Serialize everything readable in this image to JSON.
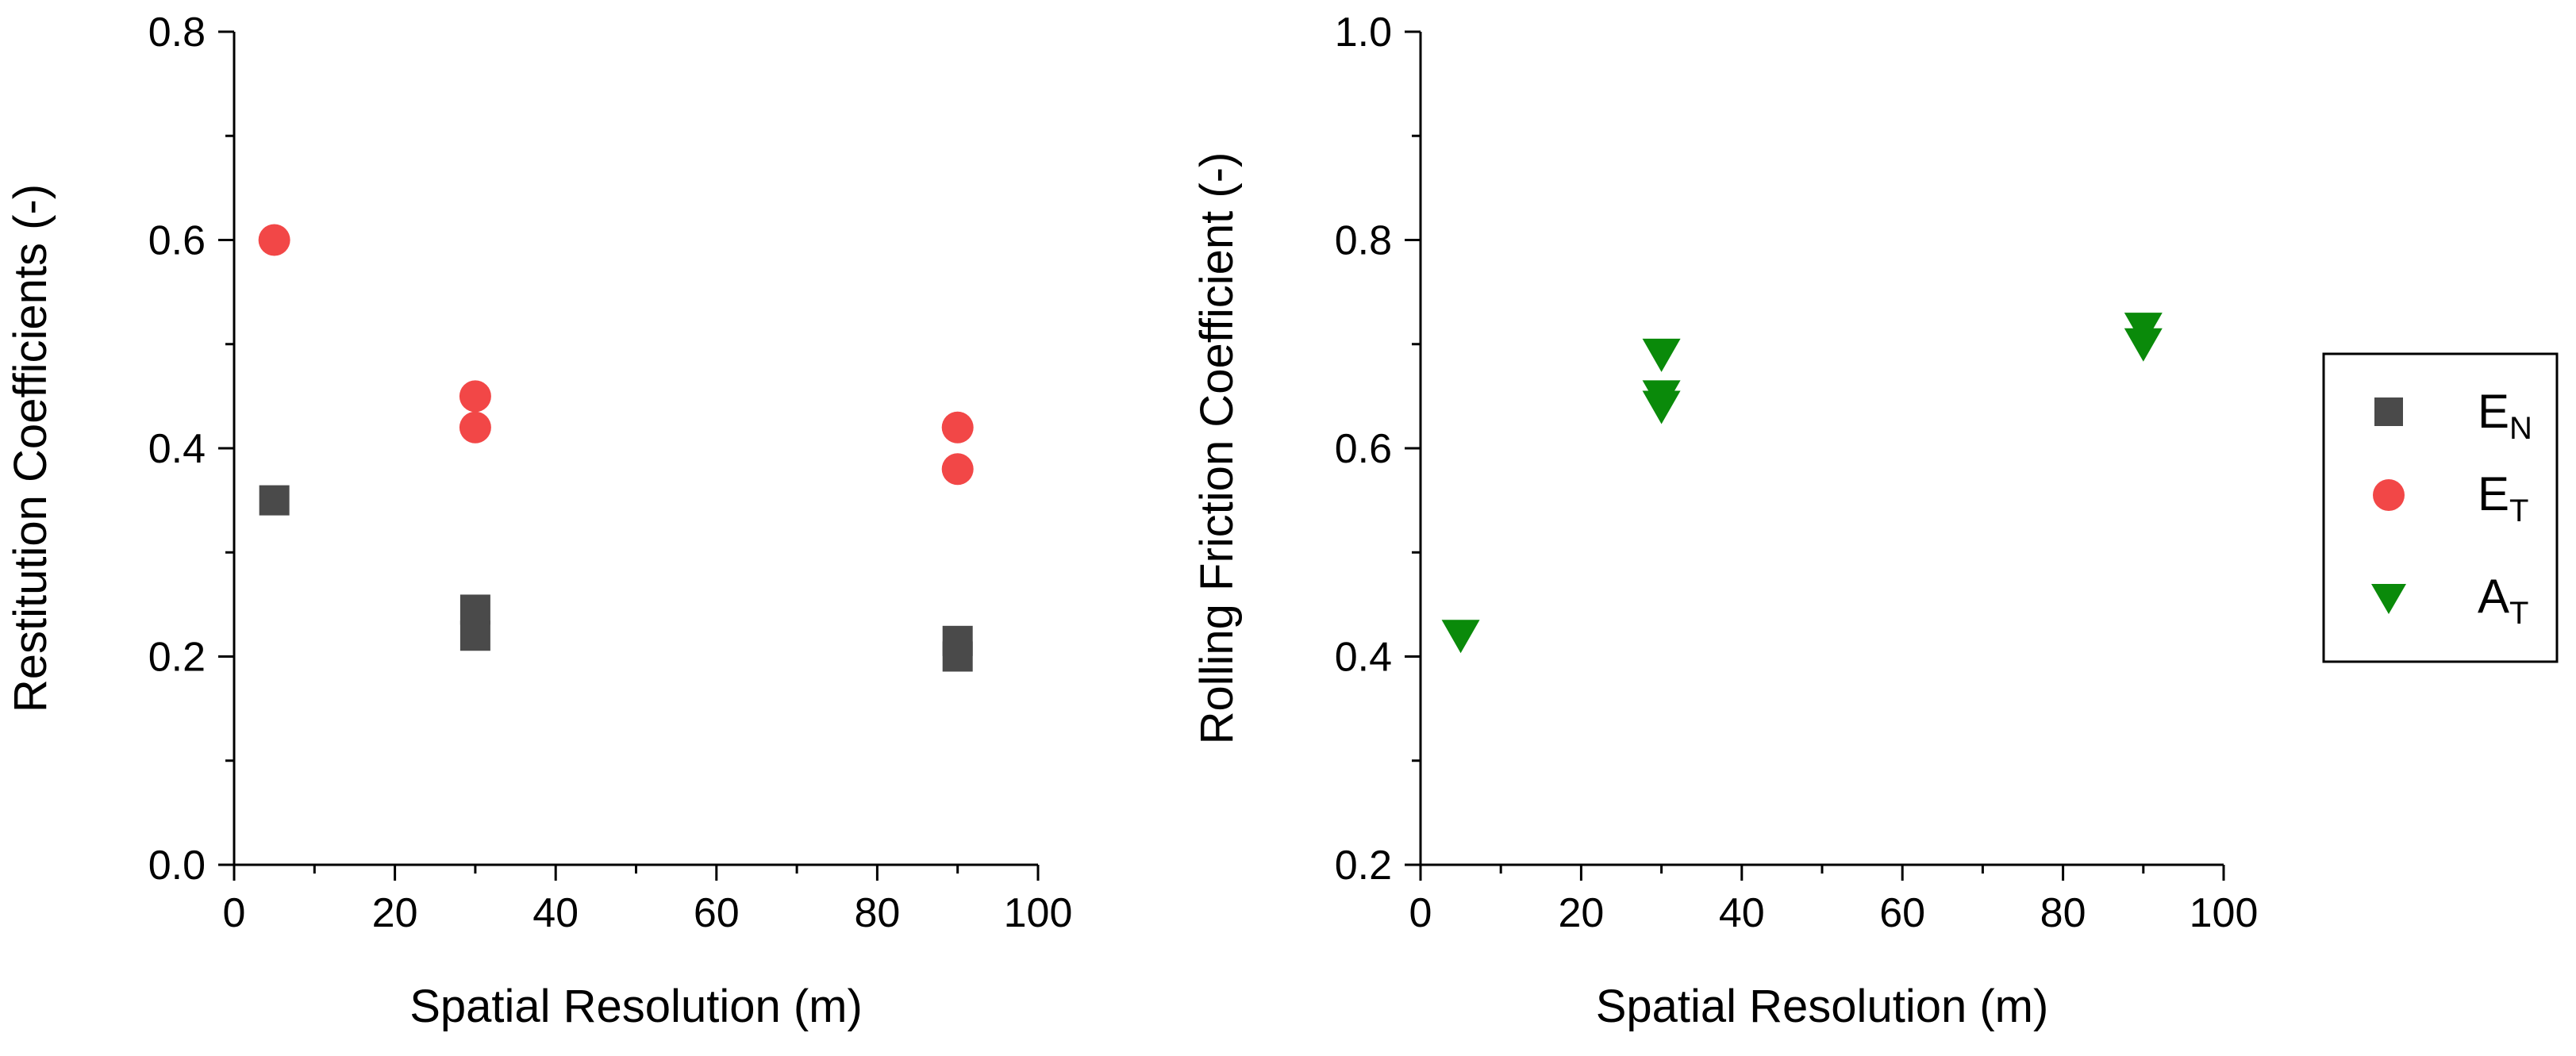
{
  "colors": {
    "E_N": "#4a4a4a",
    "E_T": "#f24747",
    "A_T": "#0a8a0a",
    "axis": "#000000"
  },
  "chart_data": [
    {
      "type": "scatter",
      "title": "",
      "xlabel": "Spatial Resolution (m)",
      "ylabel": "Restitution Coefficients (-)",
      "xlim": [
        0,
        100
      ],
      "ylim": [
        0.0,
        0.8
      ],
      "xticks": [
        "0",
        "20",
        "40",
        "60",
        "80",
        "100"
      ],
      "yticks": [
        "0.0",
        "0.2",
        "0.4",
        "0.6",
        "0.8"
      ],
      "series": [
        {
          "name": "E_N",
          "marker": "square",
          "color": "#4a4a4a",
          "points": [
            [
              5,
              0.35
            ],
            [
              30,
              0.245
            ],
            [
              30,
              0.22
            ],
            [
              90,
              0.215
            ],
            [
              90,
              0.2
            ]
          ]
        },
        {
          "name": "E_T",
          "marker": "circle",
          "color": "#f24747",
          "points": [
            [
              5,
              0.6
            ],
            [
              30,
              0.45
            ],
            [
              30,
              0.42
            ],
            [
              90,
              0.42
            ],
            [
              90,
              0.38
            ]
          ]
        }
      ]
    },
    {
      "type": "scatter",
      "title": "",
      "xlabel": "Spatial Resolution (m)",
      "ylabel": "Rolling Friction Coefficient (-)",
      "xlim": [
        0,
        100
      ],
      "ylim": [
        0.2,
        1.0
      ],
      "xticks": [
        "0",
        "20",
        "40",
        "60",
        "80",
        "100"
      ],
      "yticks": [
        "0.2",
        "0.4",
        "0.6",
        "0.8",
        "1.0"
      ],
      "series": [
        {
          "name": "A_T",
          "marker": "triangle-down",
          "color": "#0a8a0a",
          "points": [
            [
              5,
              0.42
            ],
            [
              30,
              0.69
            ],
            [
              30,
              0.65
            ],
            [
              30,
              0.64
            ],
            [
              90,
              0.715
            ],
            [
              90,
              0.7
            ]
          ]
        }
      ]
    }
  ],
  "legend": {
    "position": "right",
    "entries": [
      {
        "key": "E_N",
        "main": "E",
        "sub": "N",
        "marker": "square"
      },
      {
        "key": "E_T",
        "main": "E",
        "sub": "T",
        "marker": "circle"
      },
      {
        "key": "A_T",
        "main": "A",
        "sub": "T",
        "marker": "triangle-down"
      }
    ]
  }
}
